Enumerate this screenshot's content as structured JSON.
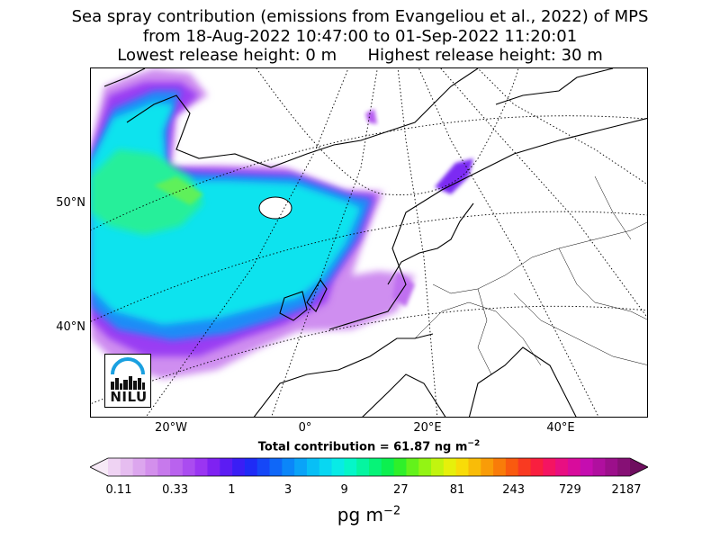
{
  "title": {
    "line1": "Sea spray contribution (emissions from Evangeliou et al., 2022) of MPS",
    "line2": "from 18-Aug-2022 10:47:00 to 01-Sep-2022 11:20:01",
    "line3": "Lowest release height: 0 m      Highest release height: 30 m"
  },
  "map": {
    "lat_labels": [
      "50°N",
      "40°N"
    ],
    "lon_labels": [
      "20°W",
      "0°",
      "20°E",
      "40°E"
    ],
    "logo_text": "NILU"
  },
  "total_label": "Total contribution = 61.87 ng m",
  "total_exponent": "−2",
  "colorbar": {
    "ticks": [
      "0.11",
      "0.33",
      "1",
      "3",
      "9",
      "27",
      "81",
      "243",
      "729",
      "2187"
    ],
    "units": "pg m",
    "units_exponent": "−2",
    "colors": [
      "#f7eaf7",
      "#efd3f3",
      "#e6bdf0",
      "#dca6ee",
      "#d38fec",
      "#c779ec",
      "#b962ee",
      "#aa4cf0",
      "#9a35f2",
      "#7f22f2",
      "#5c1cf3",
      "#3a1ef5",
      "#1f2bf6",
      "#1547f7",
      "#0f67f8",
      "#0b86f9",
      "#0aa3f8",
      "#08bff6",
      "#08d7f2",
      "#08ebe6",
      "#05f6c8",
      "#05f5a0",
      "#06f378",
      "#0cf04f",
      "#2ff02a",
      "#63f21b",
      "#93f414",
      "#c2f40f",
      "#e6f00b",
      "#f8dc08",
      "#f9bc08",
      "#f99c08",
      "#f97c09",
      "#f95a0f",
      "#f93a21",
      "#f91f3f",
      "#f41462",
      "#e80f82",
      "#d80c9c",
      "#c50db0",
      "#b00f9f",
      "#9c0f8b",
      "#861075",
      "#6e0e5f"
    ]
  }
}
